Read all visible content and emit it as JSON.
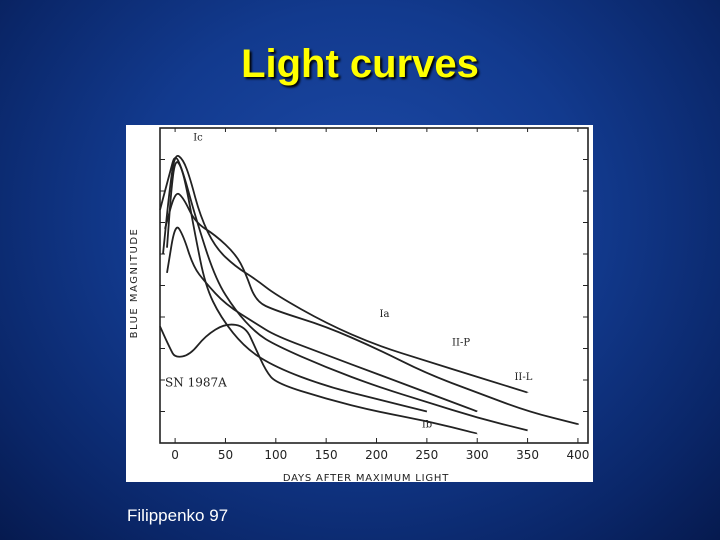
{
  "slide": {
    "title": "Light curves",
    "credit": "Filippenko 97"
  },
  "colors": {
    "title": "#ffff00",
    "background": "#123a8e",
    "panel": "#ffffff",
    "ink": "#222222"
  },
  "chart_data": {
    "type": "line",
    "xlabel": "DAYS AFTER MAXIMUM LIGHT",
    "ylabel": "BLUE MAGNITUDE",
    "xticks": [
      0,
      50,
      100,
      150,
      200,
      250,
      300,
      350,
      400
    ],
    "xlim": [
      -15,
      410
    ],
    "ylim": [
      0,
      100
    ],
    "y_reversed": true,
    "grid": false,
    "annotation": "SN 1987A",
    "series": [
      {
        "name": "Ia",
        "label_day": 203,
        "label_mag": 60,
        "points": [
          [
            -12,
            40
          ],
          [
            -5,
            18
          ],
          [
            0,
            8
          ],
          [
            8,
            10
          ],
          [
            15,
            16
          ],
          [
            25,
            28
          ],
          [
            40,
            38
          ],
          [
            60,
            44
          ],
          [
            80,
            48
          ],
          [
            100,
            53
          ],
          [
            150,
            62
          ],
          [
            200,
            69
          ],
          [
            250,
            74
          ],
          [
            300,
            79
          ],
          [
            350,
            84
          ]
        ]
      },
      {
        "name": "Ic",
        "label_day": 18,
        "label_mag": 4,
        "points": [
          [
            -8,
            38
          ],
          [
            -4,
            20
          ],
          [
            0,
            10
          ],
          [
            6,
            12
          ],
          [
            12,
            20
          ],
          [
            20,
            34
          ],
          [
            30,
            50
          ],
          [
            45,
            60
          ],
          [
            70,
            70
          ],
          [
            100,
            76
          ],
          [
            150,
            82
          ],
          [
            200,
            86
          ],
          [
            250,
            90
          ]
        ]
      },
      {
        "name": "II-L",
        "label_day": 337,
        "label_mag": 80,
        "points": [
          [
            -15,
            26
          ],
          [
            -5,
            14
          ],
          [
            0,
            8
          ],
          [
            8,
            14
          ],
          [
            20,
            28
          ],
          [
            40,
            48
          ],
          [
            60,
            58
          ],
          [
            80,
            65
          ],
          [
            100,
            69
          ],
          [
            150,
            76
          ],
          [
            200,
            82
          ],
          [
            250,
            87
          ],
          [
            300,
            92
          ],
          [
            350,
            96
          ]
        ]
      },
      {
        "name": "II-P",
        "label_day": 275,
        "label_mag": 69,
        "points": [
          [
            -10,
            32
          ],
          [
            0,
            20
          ],
          [
            8,
            22
          ],
          [
            20,
            30
          ],
          [
            40,
            34
          ],
          [
            60,
            40
          ],
          [
            70,
            46
          ],
          [
            80,
            55
          ],
          [
            100,
            58
          ],
          [
            150,
            63
          ],
          [
            200,
            70
          ],
          [
            250,
            78
          ],
          [
            300,
            84
          ],
          [
            350,
            90
          ],
          [
            400,
            94
          ]
        ]
      },
      {
        "name": "Ib",
        "label_day": 245,
        "label_mag": 95,
        "points": [
          [
            -8,
            46
          ],
          [
            0,
            30
          ],
          [
            8,
            34
          ],
          [
            18,
            44
          ],
          [
            30,
            49
          ],
          [
            50,
            56
          ],
          [
            80,
            62
          ],
          [
            100,
            66
          ],
          [
            150,
            72
          ],
          [
            200,
            78
          ],
          [
            250,
            84
          ],
          [
            300,
            90
          ]
        ]
      },
      {
        "name": "SN 1987A",
        "label_day": -10,
        "label_mag": 82,
        "points": [
          [
            -15,
            63
          ],
          [
            -5,
            70
          ],
          [
            0,
            73
          ],
          [
            15,
            72
          ],
          [
            30,
            66
          ],
          [
            50,
            62
          ],
          [
            70,
            63
          ],
          [
            80,
            70
          ],
          [
            90,
            77
          ],
          [
            100,
            81
          ],
          [
            150,
            86
          ],
          [
            200,
            90
          ],
          [
            250,
            93
          ],
          [
            300,
            97
          ]
        ]
      }
    ]
  }
}
